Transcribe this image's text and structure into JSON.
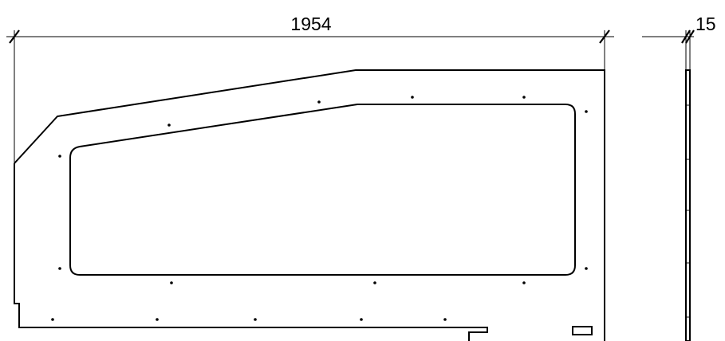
{
  "dimensions": {
    "width_label": "1954",
    "thickness_label": "15"
  }
}
